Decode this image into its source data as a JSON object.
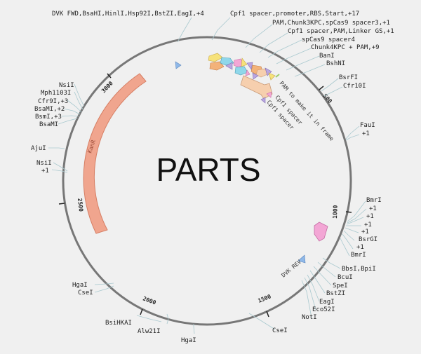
{
  "map": {
    "center_label": "PARTS",
    "colors": {
      "backbone": "#777777",
      "leader": "#a9c9cf",
      "kanr": "#f0a58e",
      "cds_peach": "#f6cfae",
      "pink": "#f3a6d5",
      "blue": "#8fb8e8",
      "purple": "#b9a6e0",
      "yellow": "#f6e27a",
      "orange": "#f3b27a",
      "cyan": "#8fd7ea"
    },
    "ticks": [
      {
        "label": "500"
      },
      {
        "label": "1000"
      },
      {
        "label": "1500"
      },
      {
        "label": "2000"
      },
      {
        "label": "2500"
      },
      {
        "label": "3000"
      }
    ],
    "features": {
      "kanr": "KanR",
      "dvk_rev": "DVK REV",
      "pam_frame": "PAM to make it in frame",
      "cpf1_spacer_a": "Cpf1 spacer",
      "cpf1_spacer_b": "Cpf1 spacer"
    },
    "sites": [
      {
        "id": "dvk-fwd",
        "text": "DVK FWD,BsaHI,HinlI,Hsp92I,BstZI,EagI,+4"
      },
      {
        "id": "cpf1-promoter",
        "text": "Cpf1 spacer,promoter,RBS,Start,+17"
      },
      {
        "id": "pam-chunk3",
        "text": "PAM,Chunk3KPC,spCas9 spacer3,+1"
      },
      {
        "id": "cpf1-pam-linker",
        "text": "Cpf1 spacer,PAM,Linker GS,+1"
      },
      {
        "id": "spcas9-spacer4",
        "text": "spCas9 spacer4"
      },
      {
        "id": "chunk4",
        "text": "Chunk4KPC + PAM,+9"
      },
      {
        "id": "bani",
        "text": "BanI"
      },
      {
        "id": "bshni",
        "text": "BshNI"
      },
      {
        "id": "bsrfi",
        "text": "BsrFI"
      },
      {
        "id": "cfr10i",
        "text": "Cfr10I"
      },
      {
        "id": "faui",
        "text": "FauI"
      },
      {
        "id": "faui-plus",
        "text": "+1"
      },
      {
        "id": "bmri-1",
        "text": "BmrI"
      },
      {
        "id": "plus-a",
        "text": "+1"
      },
      {
        "id": "plus-b",
        "text": "+1"
      },
      {
        "id": "plus-c",
        "text": "+1"
      },
      {
        "id": "plus-d",
        "text": "+1"
      },
      {
        "id": "bsrgi",
        "text": "BsrGI"
      },
      {
        "id": "plus-e",
        "text": "+1"
      },
      {
        "id": "bmri-2",
        "text": "BmrI"
      },
      {
        "id": "bbsi",
        "text": "BbsI,BpiI"
      },
      {
        "id": "bcui",
        "text": "BcuI"
      },
      {
        "id": "spei",
        "text": "SpeI"
      },
      {
        "id": "bstzi",
        "text": "BstZI"
      },
      {
        "id": "eagi",
        "text": "EagI"
      },
      {
        "id": "eco52i",
        "text": "Eco52I"
      },
      {
        "id": "noti",
        "text": "NotI"
      },
      {
        "id": "csei-b",
        "text": "CseI"
      },
      {
        "id": "hgai-b",
        "text": "HgaI"
      },
      {
        "id": "alw21i",
        "text": "Alw21I"
      },
      {
        "id": "bsihkai",
        "text": "BsiHKAI"
      },
      {
        "id": "hgai-a",
        "text": "HgaI"
      },
      {
        "id": "csei-a",
        "text": "CseI"
      },
      {
        "id": "nsii-b",
        "text": "NsiI"
      },
      {
        "id": "nsii-b-plus",
        "text": "+1"
      },
      {
        "id": "ajui",
        "text": "AjuI"
      },
      {
        "id": "nsii-a",
        "text": "NsiI"
      },
      {
        "id": "mph1103i",
        "text": "Mph1103I"
      },
      {
        "id": "cfr9i",
        "text": "Cfr9I,+3"
      },
      {
        "id": "bsami",
        "text": "BsaMI,+2"
      },
      {
        "id": "bsmi",
        "text": "BsmI,+3"
      },
      {
        "id": "bsami-b",
        "text": "BsaMI"
      }
    ]
  }
}
